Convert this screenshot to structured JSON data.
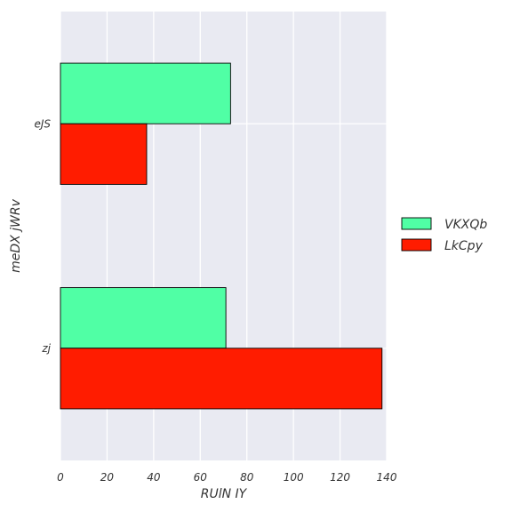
{
  "chart_data": {
    "type": "bar",
    "orientation": "horizontal",
    "categories": [
      "eJS",
      "zj"
    ],
    "series": [
      {
        "name": "VKXQb",
        "values": [
          73,
          71
        ],
        "color": "#50FFA5"
      },
      {
        "name": "LkCpy",
        "values": [
          37,
          138
        ],
        "color": "#FF1C00"
      }
    ],
    "xlabel": "RUlN IY",
    "ylabel": "meDX jWRv",
    "xlim": [
      0,
      140
    ],
    "xticks": [
      0,
      20,
      40,
      60,
      80,
      100,
      120,
      140
    ],
    "grid": true,
    "legend_position": "right",
    "plot_background": "#E9EAF2",
    "grid_color": "#FFFFFF",
    "bar_edge_color": "#000000"
  }
}
